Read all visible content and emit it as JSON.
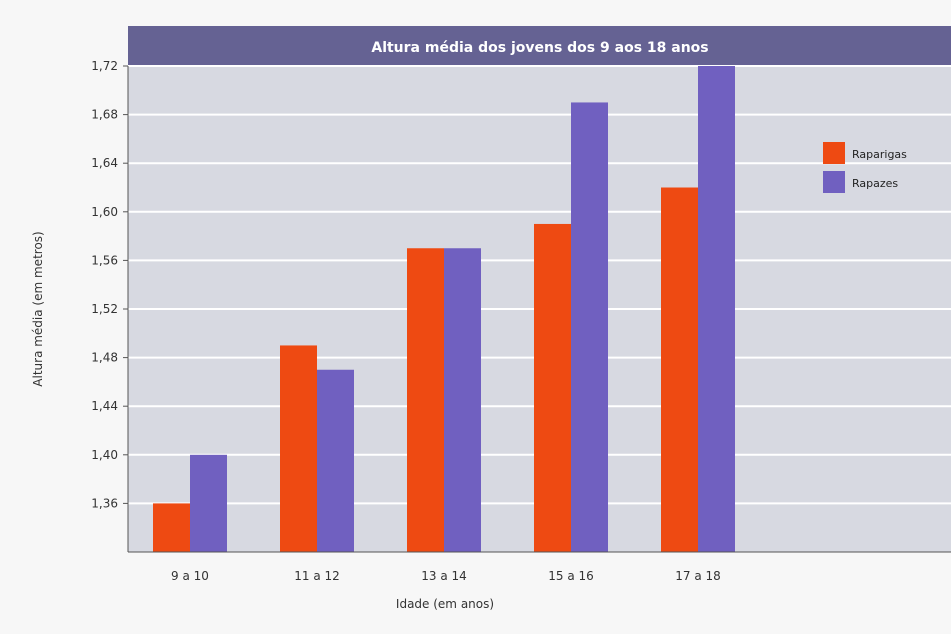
{
  "chart_data": {
    "type": "bar",
    "title": "Altura média dos jovens dos 9 aos 18 anos",
    "xlabel": "Idade (em anos)",
    "ylabel": "Altura média (em metros)",
    "categories": [
      "9 a 10",
      "11 a 12",
      "13 a 14",
      "15 a 16",
      "17 a 18"
    ],
    "y_tick_labels": [
      "1,36",
      "1,40",
      "1,44",
      "1,48",
      "1,52",
      "1,56",
      "1,60",
      "1,64",
      "1,68",
      "1,72"
    ],
    "ylim": [
      1.32,
      1.72
    ],
    "grid": true,
    "legend_position": "top-right",
    "series": [
      {
        "name": "Raparigas",
        "color": "#ee4a12",
        "values": [
          1.36,
          1.49,
          1.57,
          1.59,
          1.62
        ]
      },
      {
        "name": "Rapazes",
        "color": "#7060c0",
        "values": [
          1.4,
          1.47,
          1.57,
          1.69,
          1.72
        ]
      }
    ]
  },
  "colors": {
    "title_bar": "#656293",
    "plot_background": "#d7d9e1",
    "gridline": "#ffffff"
  }
}
